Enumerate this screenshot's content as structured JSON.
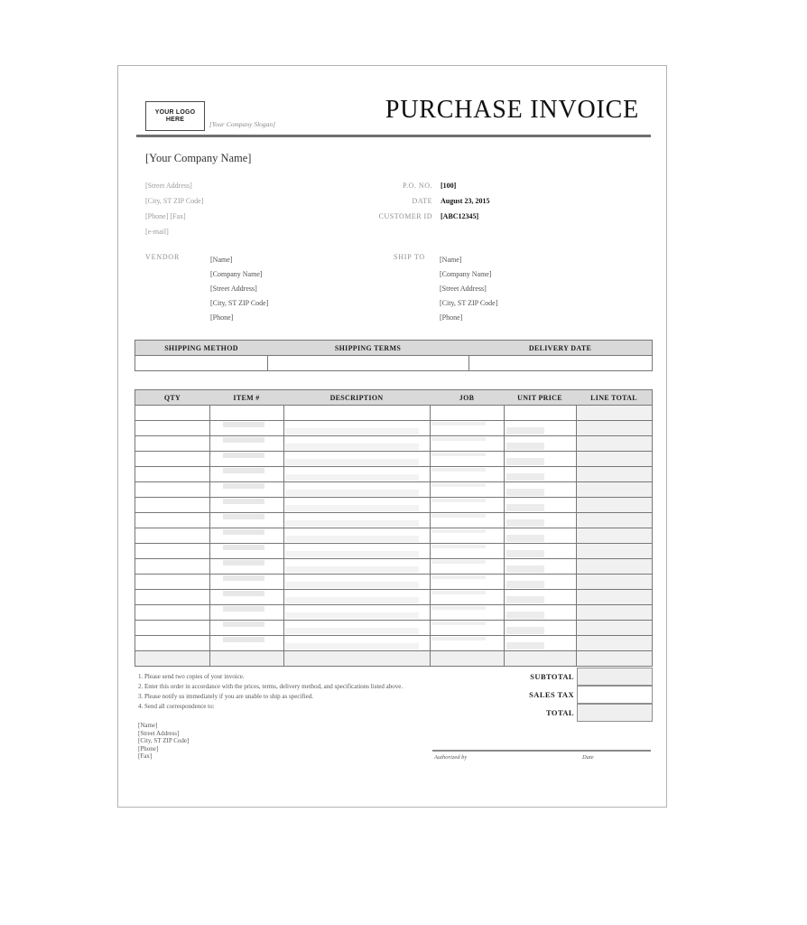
{
  "colors": {
    "table_header_bg": "#d9d9d9",
    "shaded_cell": "#f1f1f1",
    "table_border": "#777777",
    "rule_gray": "#6f6f6f"
  },
  "header": {
    "logo_text": "YOUR LOGO HERE",
    "slogan": "[Your Company Slogan]",
    "title": "PURCHASE INVOICE"
  },
  "company": {
    "name": "[Your Company Name]",
    "address_lines": [
      "[Street Address]",
      "[City, ST  ZIP Code]",
      "[Phone] [Fax]",
      "[e-mail]"
    ]
  },
  "po_details": {
    "fields": [
      {
        "label": "P.O. NO.",
        "value": "[100]"
      },
      {
        "label": "DATE",
        "value": "August 23, 2015"
      },
      {
        "label": "CUSTOMER ID",
        "value": "[ABC12345]"
      }
    ]
  },
  "vendor": {
    "label": "VENDOR",
    "lines": [
      "[Name]",
      "[Company Name]",
      "[Street Address]",
      "[City, ST  ZIP Code]",
      "[Phone]"
    ]
  },
  "ship_to": {
    "label": "SHIP TO",
    "lines": [
      "[Name]",
      "[Company Name]",
      "[Street Address]",
      "[City, ST  ZIP Code]",
      "[Phone]"
    ]
  },
  "shipping_table": {
    "headers": [
      "SHIPPING METHOD",
      "SHIPPING TERMS",
      "DELIVERY DATE"
    ],
    "row": [
      "",
      "",
      ""
    ]
  },
  "items_table": {
    "headers": [
      "QTY",
      "ITEM #",
      "DESCRIPTION",
      "JOB",
      "UNIT PRICE",
      "LINE TOTAL"
    ],
    "row_count": 17,
    "rows_empty": true
  },
  "totals": {
    "rows": [
      {
        "label": "SUBTOTAL",
        "value": ""
      },
      {
        "label": "SALES TAX",
        "value": ""
      },
      {
        "label": "TOTAL",
        "value": ""
      }
    ]
  },
  "notes": [
    "1. Please send two copies of your invoice.",
    "2. Enter this order in accordance with the prices, terms, delivery method, and specifications listed above.",
    "3. Please notify us immediately if you are unable to ship as specified.",
    "4. Send all correspondence to:"
  ],
  "correspondence": [
    "[Name]",
    "[Street Address]",
    "[City, ST ZIP Code]",
    "[Phone]",
    "[Fax]"
  ],
  "signature": {
    "authorized_label": "Authorized by",
    "date_label": "Date"
  }
}
